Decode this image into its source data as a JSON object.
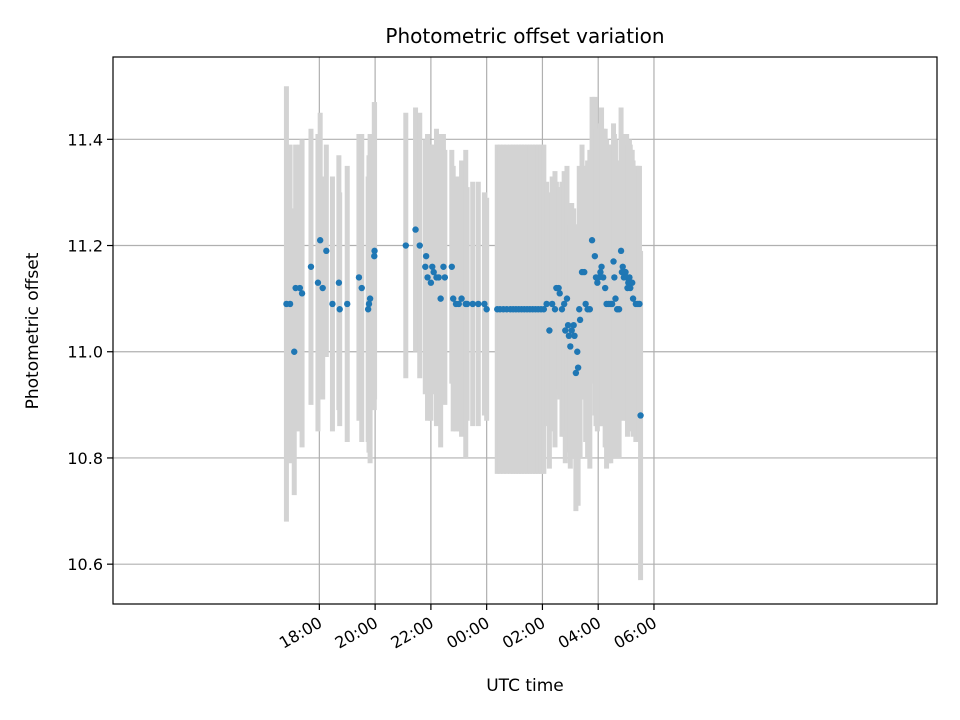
{
  "chart_data": {
    "type": "scatter",
    "title": "Photometric offset variation",
    "xlabel": "UTC time",
    "ylabel": "Photometric offset",
    "grid": true,
    "legend": "none",
    "xlim": [
      -7.4,
      22.15
    ],
    "ylim": [
      10.525,
      11.555
    ],
    "x_ticks": [
      {
        "h": 0,
        "label": "18:00"
      },
      {
        "h": 2,
        "label": "20:00"
      },
      {
        "h": 4,
        "label": "22:00"
      },
      {
        "h": 6,
        "label": "00:00"
      },
      {
        "h": 8,
        "label": "02:00"
      },
      {
        "h": 10,
        "label": "04:00"
      },
      {
        "h": 12,
        "label": "06:00"
      }
    ],
    "y_ticks": [
      10.6,
      10.8,
      11.0,
      11.2,
      11.4
    ],
    "colors": {
      "points": "#1f77b4",
      "errorbars": "#d3d3d3",
      "grid": "#b0b0b0"
    },
    "points": [
      [
        -1.18,
        11.09,
        0.41
      ],
      [
        -1.05,
        11.09,
        0.3
      ],
      [
        -0.9,
        11.0,
        0.27
      ],
      [
        -0.85,
        11.12,
        0.27
      ],
      [
        -0.7,
        11.12,
        0.27
      ],
      [
        -0.62,
        11.11,
        0.29
      ],
      [
        -0.3,
        11.16,
        0.26
      ],
      [
        -0.05,
        11.13,
        0.28
      ],
      [
        0.03,
        11.21,
        0.24
      ],
      [
        0.12,
        11.12,
        0.21
      ],
      [
        0.25,
        11.19,
        0.2
      ],
      [
        0.47,
        11.09,
        0.24
      ],
      [
        0.7,
        11.13,
        0.24
      ],
      [
        0.73,
        11.08,
        0.22
      ],
      [
        1.0,
        11.09,
        0.26
      ],
      [
        1.42,
        11.14,
        0.27
      ],
      [
        1.52,
        11.12,
        0.29
      ],
      [
        1.75,
        11.08,
        0.25
      ],
      [
        1.78,
        11.09,
        0.28
      ],
      [
        1.82,
        11.1,
        0.31
      ],
      [
        1.97,
        11.18,
        0.29
      ],
      [
        1.98,
        11.19,
        0.28
      ],
      [
        3.1,
        11.2,
        0.25
      ],
      [
        3.45,
        11.23,
        0.23
      ],
      [
        3.6,
        11.2,
        0.25
      ],
      [
        3.8,
        11.16,
        0.24
      ],
      [
        3.83,
        11.18,
        0.22
      ],
      [
        3.88,
        11.14,
        0.27
      ],
      [
        4.0,
        11.13,
        0.26
      ],
      [
        4.05,
        11.16,
        0.23
      ],
      [
        4.1,
        11.15,
        0.23
      ],
      [
        4.2,
        11.14,
        0.28
      ],
      [
        4.28,
        11.14,
        0.27
      ],
      [
        4.35,
        11.1,
        0.28
      ],
      [
        4.45,
        11.16,
        0.25
      ],
      [
        4.5,
        11.14,
        0.24
      ],
      [
        4.75,
        11.16,
        0.22
      ],
      [
        4.8,
        11.1,
        0.25
      ],
      [
        4.9,
        11.09,
        0.24
      ],
      [
        5.0,
        11.09,
        0.24
      ],
      [
        5.1,
        11.1,
        0.26
      ],
      [
        5.25,
        11.09,
        0.29
      ],
      [
        5.3,
        11.09,
        0.22
      ],
      [
        5.5,
        11.09,
        0.23
      ],
      [
        5.7,
        11.09,
        0.23
      ],
      [
        5.92,
        11.09,
        0.21
      ],
      [
        6.0,
        11.08,
        0.21
      ],
      [
        6.38,
        11.08,
        0.31
      ],
      [
        6.48,
        11.08,
        0.31
      ],
      [
        6.6,
        11.08,
        0.31
      ],
      [
        6.72,
        11.08,
        0.31
      ],
      [
        6.85,
        11.08,
        0.31
      ],
      [
        6.95,
        11.08,
        0.31
      ],
      [
        7.05,
        11.08,
        0.31
      ],
      [
        7.15,
        11.08,
        0.31
      ],
      [
        7.25,
        11.08,
        0.31
      ],
      [
        7.35,
        11.08,
        0.31
      ],
      [
        7.45,
        11.08,
        0.31
      ],
      [
        7.55,
        11.08,
        0.31
      ],
      [
        7.65,
        11.08,
        0.31
      ],
      [
        7.75,
        11.08,
        0.31
      ],
      [
        7.85,
        11.08,
        0.31
      ],
      [
        7.95,
        11.08,
        0.31
      ],
      [
        8.05,
        11.08,
        0.31
      ],
      [
        8.15,
        11.09,
        0.23
      ],
      [
        8.25,
        11.04,
        0.26
      ],
      [
        8.35,
        11.09,
        0.24
      ],
      [
        8.45,
        11.08,
        0.26
      ],
      [
        8.5,
        11.12,
        0.2
      ],
      [
        8.58,
        11.12,
        0.19
      ],
      [
        8.62,
        11.11,
        0.2
      ],
      [
        8.7,
        11.08,
        0.24
      ],
      [
        8.78,
        11.09,
        0.25
      ],
      [
        8.82,
        11.04,
        0.25
      ],
      [
        8.88,
        11.1,
        0.25
      ],
      [
        8.92,
        11.05,
        0.23
      ],
      [
        8.95,
        11.03,
        0.22
      ],
      [
        9.0,
        11.01,
        0.23
      ],
      [
        9.05,
        11.04,
        0.24
      ],
      [
        9.12,
        11.05,
        0.22
      ],
      [
        9.15,
        11.03,
        0.2
      ],
      [
        9.2,
        10.96,
        0.26
      ],
      [
        9.25,
        11.0,
        0.24
      ],
      [
        9.28,
        10.97,
        0.26
      ],
      [
        9.32,
        11.08,
        0.27
      ],
      [
        9.35,
        11.06,
        0.26
      ],
      [
        9.42,
        11.15,
        0.24
      ],
      [
        9.5,
        11.15,
        0.2
      ],
      [
        9.55,
        11.09,
        0.26
      ],
      [
        9.62,
        11.08,
        0.28
      ],
      [
        9.7,
        11.08,
        0.3
      ],
      [
        9.78,
        11.21,
        0.27
      ],
      [
        9.88,
        11.18,
        0.3
      ],
      [
        9.92,
        11.14,
        0.28
      ],
      [
        9.97,
        11.13,
        0.28
      ],
      [
        10.02,
        11.14,
        0.28
      ],
      [
        10.08,
        11.15,
        0.28
      ],
      [
        10.12,
        11.16,
        0.3
      ],
      [
        10.18,
        11.14,
        0.28
      ],
      [
        10.25,
        11.12,
        0.3
      ],
      [
        10.3,
        11.09,
        0.31
      ],
      [
        10.38,
        11.09,
        0.3
      ],
      [
        10.45,
        11.09,
        0.3
      ],
      [
        10.5,
        11.09,
        0.28
      ],
      [
        10.55,
        11.17,
        0.26
      ],
      [
        10.58,
        11.14,
        0.27
      ],
      [
        10.62,
        11.1,
        0.3
      ],
      [
        10.68,
        11.08,
        0.28
      ],
      [
        10.75,
        11.08,
        0.28
      ],
      [
        10.82,
        11.19,
        0.27
      ],
      [
        10.85,
        11.15,
        0.25
      ],
      [
        10.88,
        11.16,
        0.24
      ],
      [
        10.92,
        11.14,
        0.27
      ],
      [
        10.98,
        11.15,
        0.25
      ],
      [
        11.02,
        11.14,
        0.27
      ],
      [
        11.05,
        11.12,
        0.28
      ],
      [
        11.08,
        11.13,
        0.26
      ],
      [
        11.12,
        11.14,
        0.26
      ],
      [
        11.15,
        11.12,
        0.27
      ],
      [
        11.18,
        11.13,
        0.25
      ],
      [
        11.22,
        11.13,
        0.25
      ],
      [
        11.25,
        11.1,
        0.26
      ],
      [
        11.35,
        11.09,
        0.26
      ],
      [
        11.42,
        11.09,
        0.26
      ],
      [
        11.48,
        11.09,
        0.26
      ],
      [
        11.52,
        10.88,
        0.31
      ]
    ]
  }
}
